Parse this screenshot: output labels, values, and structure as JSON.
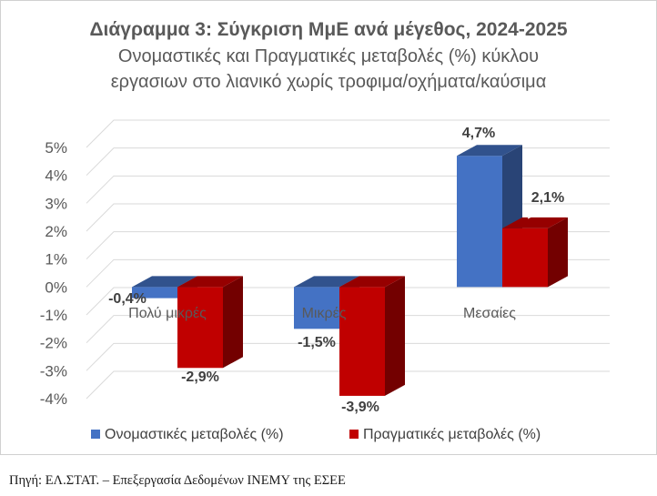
{
  "chart_data": {
    "type": "bar",
    "title": "Διάγραμμα 3: Σύγκριση ΜμΕ ανά μέγεθος, 2024-2025",
    "subtitle_lines": [
      "Ονομαστικές και Πραγματικές μεταβολές (%) κύκλου",
      "εργασιων στο λιανικό χωρίς τροφιμα/οχήματα/καύσιμα"
    ],
    "categories": [
      "Πολύ μικρές",
      "Μικρές",
      "Μεσαίες"
    ],
    "series": [
      {
        "name": "Ονομαστικές μεταβολές (%)",
        "values": [
          -0.4,
          -1.5,
          4.7
        ],
        "labels": [
          "-0,4%",
          "-1,5%",
          "4,7%"
        ],
        "color": "#4472C4"
      },
      {
        "name": "Πραγματικές μεταβολές (%)",
        "values": [
          -2.9,
          -3.9,
          2.1
        ],
        "labels": [
          "-2,9%",
          "-3,9%",
          "2,1%"
        ],
        "color": "#C00000"
      }
    ],
    "y_ticks": [
      "5%",
      "4%",
      "3%",
      "2%",
      "1%",
      "0%",
      "-1%",
      "-2%",
      "-3%",
      "-4%"
    ],
    "ylim": [
      -4,
      5
    ],
    "grid": true,
    "style": "3d-bar",
    "legend_position": "bottom"
  },
  "footer": {
    "source": "Πηγή: ΕΛ.ΣΤΑΤ. – Επεξεργασία Δεδομένων ΙΝΕΜΥ της ΕΣΕΕ"
  }
}
